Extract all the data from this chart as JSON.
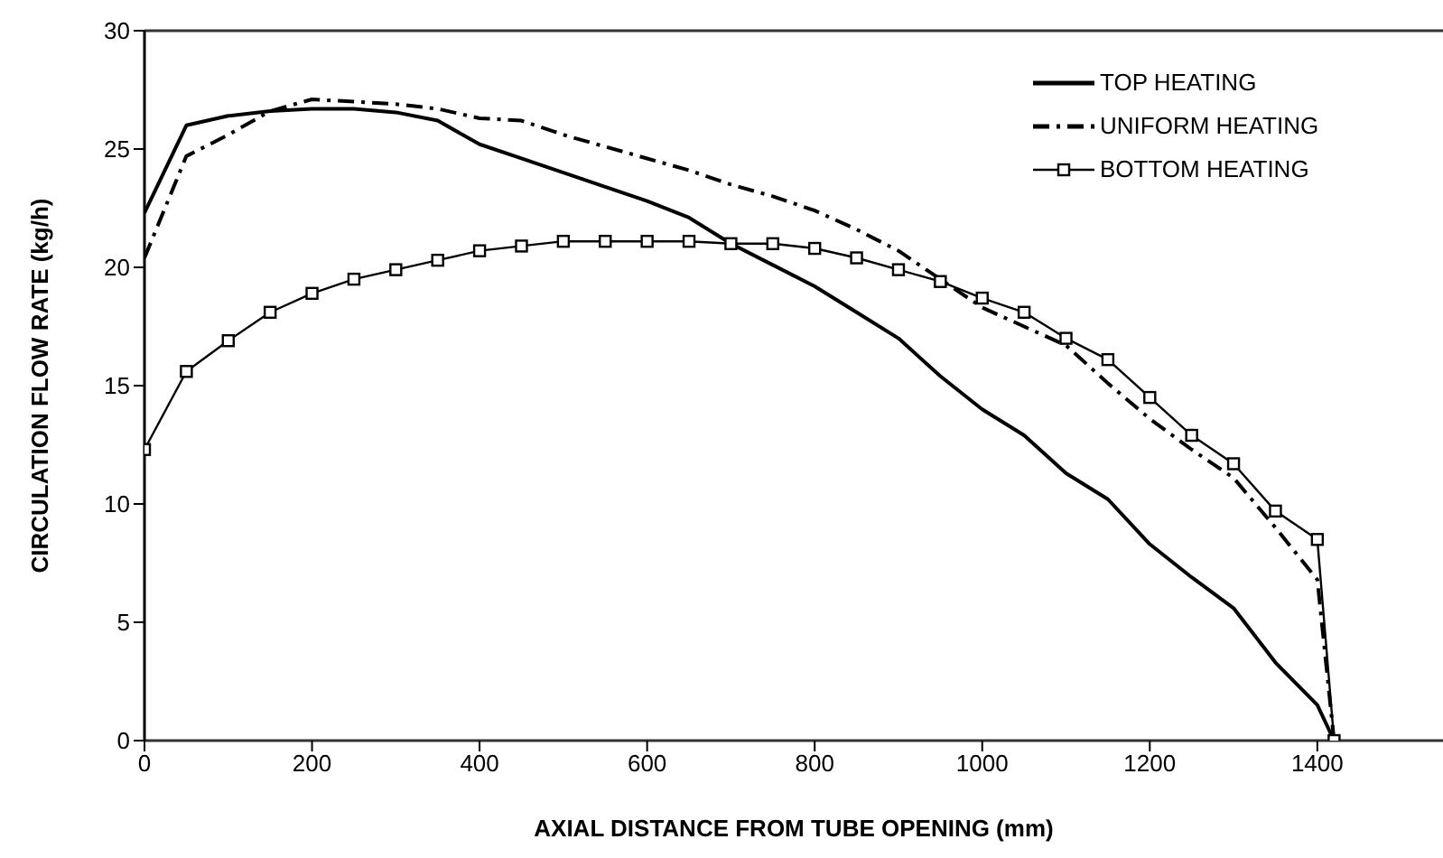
{
  "chart_data": {
    "type": "line",
    "xlabel": "AXIAL DISTANCE FROM TUBE OPENING (mm)",
    "ylabel": "CIRCULATION FLOW RATE (kg/h)",
    "x": [
      0,
      50,
      100,
      150,
      200,
      250,
      300,
      350,
      400,
      450,
      500,
      550,
      600,
      650,
      700,
      750,
      800,
      850,
      900,
      950,
      1000,
      1050,
      1100,
      1150,
      1200,
      1250,
      1300,
      1350,
      1400,
      1420
    ],
    "series": [
      {
        "name": "TOP HEATING",
        "color": "#000000",
        "line_style": "solid",
        "marker": "none",
        "values": [
          22.3,
          26.0,
          26.4,
          26.6,
          26.7,
          26.7,
          26.55,
          26.2,
          25.2,
          24.6,
          24.0,
          23.4,
          22.8,
          22.1,
          21.0,
          20.1,
          19.2,
          18.1,
          17.0,
          15.4,
          14.0,
          12.9,
          11.3,
          10.2,
          8.3,
          6.9,
          5.6,
          3.3,
          1.5,
          0
        ]
      },
      {
        "name": "UNIFORM HEATING",
        "color": "#000000",
        "line_style": "dashed",
        "marker": "none",
        "values": [
          20.4,
          24.7,
          25.6,
          26.6,
          27.1,
          27.0,
          26.9,
          26.7,
          26.3,
          26.2,
          25.6,
          25.1,
          24.6,
          24.1,
          23.5,
          23.0,
          22.4,
          21.6,
          20.7,
          19.5,
          18.3,
          17.5,
          16.7,
          15.1,
          13.6,
          12.3,
          11.1,
          9.0,
          6.8,
          0
        ]
      },
      {
        "name": "BOTTOM HEATING",
        "color": "#000000",
        "line_style": "solid",
        "marker": "square",
        "values": [
          12.3,
          15.6,
          16.9,
          18.1,
          18.9,
          19.5,
          19.9,
          20.3,
          20.7,
          20.9,
          21.1,
          21.1,
          21.1,
          21.1,
          21.0,
          21.0,
          20.8,
          20.4,
          19.9,
          19.4,
          18.7,
          18.1,
          17.0,
          16.1,
          14.5,
          12.9,
          11.7,
          9.7,
          8.5,
          0
        ]
      }
    ],
    "xlim": [
      0,
      1550
    ],
    "xticks": [
      0,
      200,
      400,
      600,
      800,
      1000,
      1200,
      1400
    ],
    "ylim": [
      0,
      30
    ],
    "yticks": [
      0,
      5,
      10,
      15,
      20,
      25,
      30
    ],
    "grid": false,
    "legend": "top right"
  }
}
